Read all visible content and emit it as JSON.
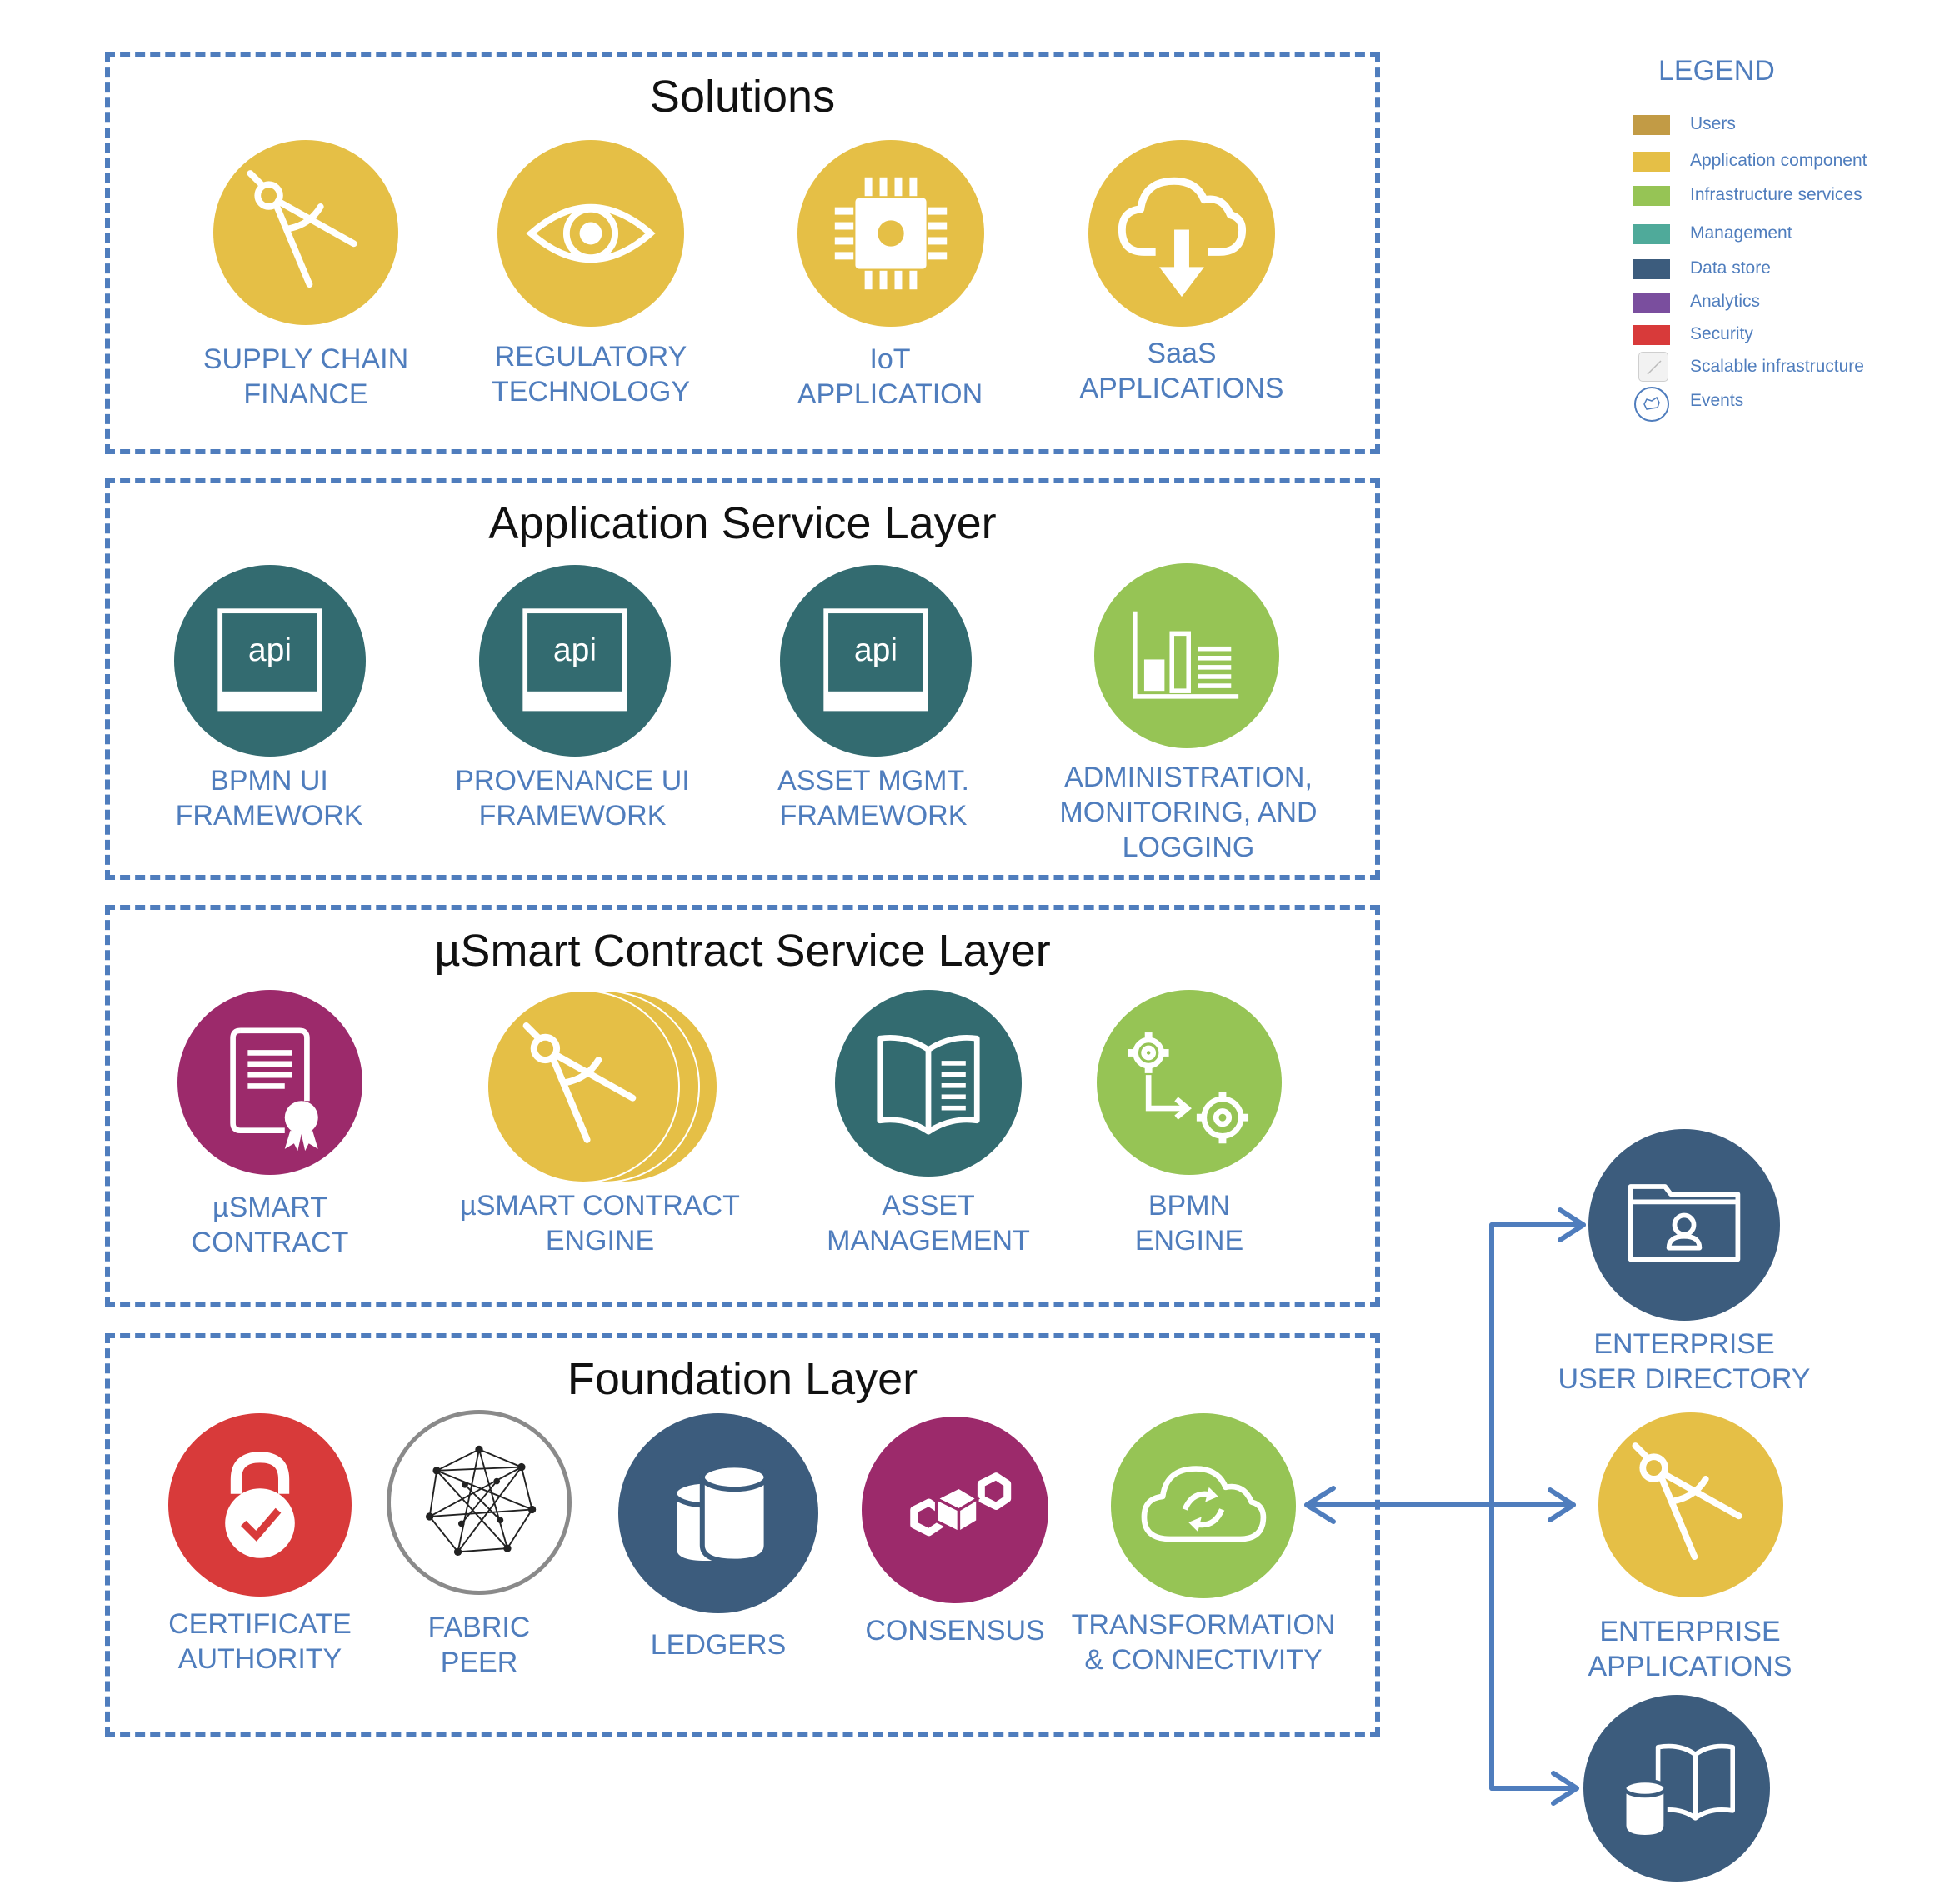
{
  "colors": {
    "dash": "#4f7dbd",
    "yellow": "#e5bf46",
    "teal": "#336b70",
    "green": "#96c455",
    "magenta": "#9c2a6b",
    "navy": "#3c5c7d",
    "red": "#d83a3a",
    "label": "#4f7dbd"
  },
  "layers": [
    {
      "title": "Solutions",
      "items": [
        {
          "label": "SUPPLY CHAIN\nFINANCE",
          "icon": "compass-icon"
        },
        {
          "label": "REGULATORY\nTECHNOLOGY",
          "icon": "eye-icon"
        },
        {
          "label": "IoT\nAPPLICATION",
          "icon": "chip-icon"
        },
        {
          "label": "SaaS\nAPPLICATIONS",
          "icon": "cloud-download-icon"
        }
      ]
    },
    {
      "title": "Application Service Layer",
      "items": [
        {
          "label": "BPMN UI\nFRAMEWORK",
          "icon": "api-icon",
          "icon_text": "api"
        },
        {
          "label": "PROVENANCE UI\nFRAMEWORK",
          "icon": "api-icon",
          "icon_text": "api"
        },
        {
          "label": "ASSET MGMT.\nFRAMEWORK",
          "icon": "api-icon",
          "icon_text": "api"
        },
        {
          "label": "ADMINISTRATION,\nMONITORING, AND\nLOGGING",
          "icon": "bar-chart-icon"
        }
      ]
    },
    {
      "title": "µSmart Contract Service Layer",
      "items": [
        {
          "label": "µSMART\nCONTRACT",
          "icon": "certificate-icon"
        },
        {
          "label": "µSMART CONTRACT\nENGINE",
          "icon": "compass-stack-icon"
        },
        {
          "label": "ASSET\nMANAGEMENT",
          "icon": "book-icon"
        },
        {
          "label": "BPMN\nENGINE",
          "icon": "gears-icon"
        }
      ]
    },
    {
      "title": "Foundation Layer",
      "items": [
        {
          "label": "CERTIFICATE\nAUTHORITY",
          "icon": "lock-icon"
        },
        {
          "label": "FABRIC\nPEER",
          "icon": "network-icon"
        },
        {
          "label": "LEDGERS",
          "icon": "database-icon"
        },
        {
          "label": "CONSENSUS",
          "icon": "blocks-icon"
        },
        {
          "label": "TRANSFORMATION\n& CONNECTIVITY",
          "icon": "cloud-sync-icon"
        }
      ]
    }
  ],
  "external": [
    {
      "label": "ENTERPRISE\nUSER DIRECTORY",
      "icon": "folder-user-icon"
    },
    {
      "label": "ENTERPRISE\nAPPLICATIONS",
      "icon": "compass-icon"
    },
    {
      "label": "",
      "icon": "data-book-icon"
    }
  ],
  "legend": {
    "title": "LEGEND",
    "items": [
      {
        "label": "Users",
        "color": "#c29b45"
      },
      {
        "label": "Application component",
        "color": "#e5bf46"
      },
      {
        "label": "Infrastructure services",
        "color": "#96c455"
      },
      {
        "label": "Management",
        "color": "#4faa9a"
      },
      {
        "label": "Data store",
        "color": "#3c5c7d"
      },
      {
        "label": "Analytics",
        "color": "#7a4e9e"
      },
      {
        "label": "Security",
        "color": "#d83a3a"
      },
      {
        "label": "Scalable infrastructure",
        "color": "#eeeeee",
        "icon": "scalable-icon"
      },
      {
        "label": "Events",
        "color": "#ffffff",
        "icon": "events-icon"
      }
    ]
  }
}
